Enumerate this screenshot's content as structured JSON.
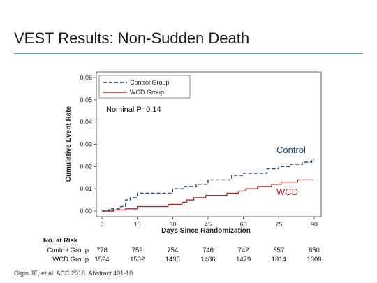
{
  "slide": {
    "title": "VEST Results: Non-Sudden Death",
    "citation": "Olgin JE, et al. ACC 2018. Abstract 401-10."
  },
  "chart_data": {
    "type": "line",
    "step": true,
    "title": "",
    "xlabel": "Days Since Randomization",
    "ylabel": "Cumulative Event Rate",
    "xlim": [
      0,
      90
    ],
    "ylim": [
      0,
      0.06
    ],
    "xticks": [
      "0",
      "15",
      "30",
      "45",
      "60",
      "75",
      "90"
    ],
    "yticks": [
      "0.00",
      "0.01",
      "0.02",
      "0.03",
      "0.04",
      "0.05",
      "0.06"
    ],
    "grid": false,
    "legend_position": "top-left",
    "annotation": "Nominal P=0.14",
    "series": [
      {
        "name": "Control Group",
        "end_label": "Control",
        "color": "#1f3f73",
        "dash": "dashed",
        "x": [
          0,
          3,
          4,
          8,
          10,
          12,
          15,
          20,
          27,
          30,
          35,
          40,
          45,
          55,
          60,
          70,
          75,
          80,
          85,
          88,
          89,
          90
        ],
        "y": [
          0.0,
          0.001,
          0.001,
          0.002,
          0.005,
          0.006,
          0.008,
          0.008,
          0.008,
          0.01,
          0.011,
          0.012,
          0.014,
          0.016,
          0.017,
          0.019,
          0.02,
          0.021,
          0.022,
          0.022,
          0.023,
          0.023
        ]
      },
      {
        "name": "WCD Group",
        "end_label": "WCD",
        "color": "#a52a2a",
        "dash": "solid",
        "x": [
          0,
          5,
          10,
          15,
          20,
          24,
          28,
          31,
          34,
          36,
          39,
          44,
          49,
          53,
          58,
          61,
          66,
          72,
          76,
          80,
          83,
          86,
          90
        ],
        "y": [
          0.0,
          0.0005,
          0.001,
          0.002,
          0.002,
          0.002,
          0.003,
          0.003,
          0.004,
          0.005,
          0.006,
          0.007,
          0.007,
          0.008,
          0.009,
          0.01,
          0.011,
          0.012,
          0.013,
          0.013,
          0.014,
          0.014,
          0.014
        ]
      }
    ],
    "risk_table": {
      "title": "No. at Risk",
      "rows": [
        {
          "label": "Control Group",
          "values": [
            "778",
            "759",
            "754",
            "746",
            "742",
            "657",
            "650"
          ]
        },
        {
          "label": "WCD Group",
          "values": [
            "1524",
            "1502",
            "1495",
            "1486",
            "1479",
            "1314",
            "1309"
          ]
        }
      ]
    }
  }
}
